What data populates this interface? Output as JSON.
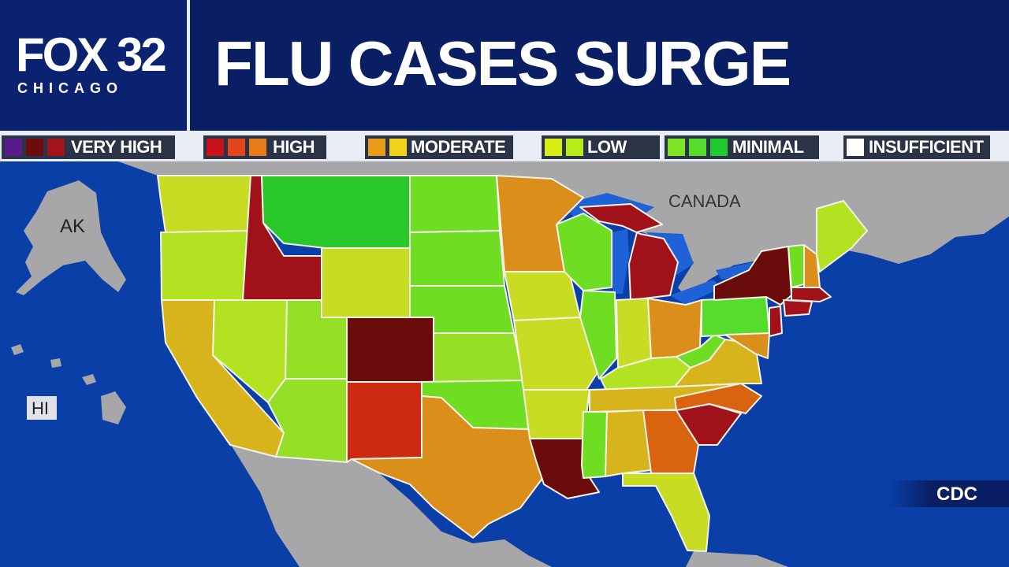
{
  "header": {
    "logo_main": "FOX 32",
    "logo_sub": "CHICAGO",
    "headline": "FLU CASES SURGE"
  },
  "legend": {
    "groups": [
      {
        "label": "VERY HIGH",
        "swatches": [
          "#5b1a8c",
          "#6e0c0c",
          "#a3131b"
        ]
      },
      {
        "label": "HIGH",
        "swatches": [
          "#c8121c",
          "#e2461a",
          "#e67d1a"
        ]
      },
      {
        "label": "MODERATE",
        "swatches": [
          "#e79b17",
          "#f2d21a"
        ]
      },
      {
        "label": "LOW",
        "swatches": [
          "#d7ee14",
          "#b5ec19"
        ]
      },
      {
        "label": "MINIMAL",
        "swatches": [
          "#7de523",
          "#56dc2a",
          "#1fca2f"
        ]
      },
      {
        "label": "INSUFFICIENT",
        "swatches": [
          "#ffffff"
        ]
      }
    ]
  },
  "map": {
    "labels": {
      "canada": "CANADA",
      "alaska": "AK",
      "hawaii": "HI"
    },
    "activity_colors": {
      "very_high_dark": "#6b0c0c",
      "very_high": "#a0111a",
      "high_red": "#cc2a12",
      "high_orange": "#d9630f",
      "moderate": "#d98f1a",
      "moderate_yellow": "#d8b41c",
      "low_yellow": "#c9dc24",
      "low": "#b3e222",
      "low_green": "#95e026",
      "minimal": "#6fde22",
      "minimal_bright": "#56dc2a",
      "minimal_dark": "#28c72a",
      "land_other": "#a7a7aa",
      "water": "#0a3fa8",
      "lakes": "#1f61d6"
    }
  },
  "source": "CDC"
}
